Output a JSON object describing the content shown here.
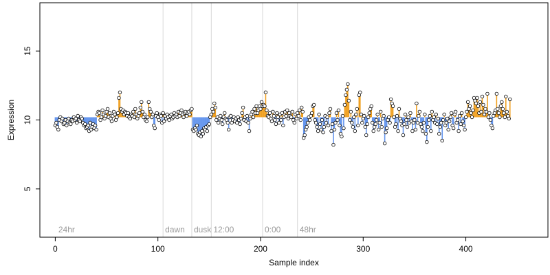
{
  "chart_data": {
    "type": "scatter",
    "xlabel": "Sample index",
    "ylabel": "Expression",
    "xlim": [
      -15,
      480
    ],
    "ylim": [
      1.5,
      18.5
    ],
    "x_ticks": [
      0,
      100,
      200,
      300,
      400
    ],
    "y_ticks": [
      5,
      10,
      15
    ],
    "grid": false,
    "baseline": 10.2,
    "colors": {
      "above_baseline": "#f0a020",
      "below_baseline": "#6495ed",
      "segment_line": "#d8d8d8",
      "point_stroke": "#000000",
      "point_fill": "#ffffff",
      "axis": "#000000",
      "segment_label": "#9a9a9a"
    },
    "segments": [
      {
        "label": "24hr",
        "x": 1
      },
      {
        "label": "dawn",
        "x": 105
      },
      {
        "label": "dusk",
        "x": 133
      },
      {
        "label": "12:00",
        "x": 152
      },
      {
        "label": "0:00",
        "x": 202
      },
      {
        "label": "48hr",
        "x": 236
      }
    ],
    "values": [
      9.6,
      9.8,
      9.5,
      9.3,
      10.0,
      10.2,
      9.9,
      10.1,
      9.7,
      9.8,
      10.0,
      9.6,
      9.9,
      10.1,
      9.8,
      9.7,
      10.0,
      9.9,
      10.2,
      10.0,
      10.1,
      9.8,
      10.3,
      10.0,
      9.9,
      10.2,
      10.1,
      9.8,
      9.6,
      9.7,
      9.4,
      9.5,
      9.6,
      9.2,
      9.8,
      9.3,
      9.5,
      9.7,
      9.4,
      9.6,
      9.3,
      10.4,
      10.6,
      10.5,
      10.0,
      10.2,
      10.7,
      10.4,
      10.1,
      10.3,
      10.6,
      10.8,
      10.2,
      10.5,
      10.1,
      9.9,
      10.3,
      10.6,
      10.4,
      10.0,
      10.2,
      10.5,
      11.6,
      12.0,
      10.8,
      10.6,
      10.7,
      10.4,
      10.6,
      10.5,
      10.3,
      10.5,
      10.2,
      10.1,
      10.4,
      10.3,
      10.6,
      10.2,
      10.8,
      10.4,
      10.1,
      10.3,
      10.5,
      10.9,
      11.3,
      10.6,
      10.2,
      10.4,
      10.0,
      9.9,
      10.2,
      11.3,
      10.8,
      10.6,
      10.2,
      10.4,
      9.6,
      9.4,
      10.3,
      10.5,
      10.2,
      10.0,
      10.4,
      10.3,
      9.8,
      10.5,
      9.9,
      10.3,
      10.1,
      10.4,
      10.2,
      10.0,
      10.3,
      10.4,
      10.1,
      10.2,
      10.5,
      10.3,
      10.4,
      10.2,
      10.6,
      10.3,
      10.5,
      10.7,
      10.4,
      10.2,
      10.5,
      10.6,
      10.3,
      10.5,
      10.6,
      10.4,
      10.7,
      10.8,
      9.3,
      9.2,
      9.4,
      9.3,
      9.6,
      9.0,
      8.9,
      9.1,
      8.8,
      9.2,
      9.0,
      9.4,
      9.3,
      9.5,
      9.2,
      9.6,
      9.7,
      10.2,
      10.4,
      10.8,
      10.6,
      11.2,
      10.9,
      10.0,
      10.2,
      9.8,
      10.1,
      10.3,
      10.0,
      9.7,
      10.2,
      10.5,
      10.1,
      10.0,
      9.8,
      9.3,
      10.2,
      10.3,
      9.8,
      10.0,
      10.2,
      9.9,
      10.1,
      9.8,
      10.2,
      10.0,
      9.7,
      10.1,
      10.5,
      10.9,
      10.0,
      10.2,
      9.9,
      10.3,
      9.8,
      9.2,
      10.1,
      10.4,
      10.6,
      10.2,
      10.8,
      10.5,
      11.0,
      10.5,
      10.7,
      11.0,
      10.8,
      11.3,
      11.0,
      11.1,
      11.0,
      12.0,
      10.7,
      10.3,
      10.2,
      10.5,
      10.1,
      9.9,
      10.6,
      10.3,
      10.0,
      9.7,
      10.5,
      10.2,
      9.8,
      10.4,
      10.0,
      10.5,
      9.6,
      10.2,
      10.6,
      10.3,
      10.7,
      10.1,
      10.5,
      10.3,
      10.2,
      10.6,
      10.0,
      9.8,
      10.4,
      10.1,
      10.5,
      10.3,
      10.7,
      10.0,
      10.9,
      10.6,
      8.7,
      8.9,
      9.3,
      9.5,
      9.8,
      10.2,
      10.0,
      10.3,
      10.5,
      11.0,
      11.1,
      10.0,
      9.8,
      9.5,
      9.2,
      10.4,
      9.7,
      9.3,
      10.0,
      9.1,
      9.5,
      10.3,
      9.8,
      10.2,
      9.6,
      10.5,
      10.8,
      9.2,
      9.7,
      8.2,
      9.3,
      9.8,
      10.5,
      10.0,
      10.7,
      9.6,
      9.0,
      8.8,
      10.3,
      9.4,
      11.1,
      11.8,
      12.2,
      12.6,
      11.4,
      10.0,
      10.6,
      9.8,
      9.5,
      10.2,
      9.2,
      10.4,
      10.8,
      9.6,
      11.8,
      12.0,
      10.4,
      9.8,
      10.1,
      10.3,
      9.5,
      8.9,
      9.7,
      10.2,
      10.5,
      10.8,
      11.0,
      9.8,
      9.2,
      9.5,
      9.7,
      10.0,
      10.4,
      9.3,
      9.8,
      10.6,
      9.5,
      10.1,
      10.3,
      8.3,
      9.1,
      9.4,
      10.0,
      10.2,
      9.8,
      11.5,
      11.2,
      11.0,
      10.2,
      9.5,
      9.7,
      10.3,
      9.2,
      10.8,
      10.1,
      9.9,
      9.6,
      8.9,
      9.7,
      10.4,
      10.0,
      9.5,
      10.2,
      9.8,
      10.5,
      9.9,
      9.2,
      9.8,
      10.0,
      9.3,
      11.2,
      9.8,
      10.3,
      10.6,
      9.7,
      9.5,
      9.2,
      9.8,
      10.4,
      9.0,
      8.4,
      9.5,
      10.0,
      10.3,
      9.2,
      10.6,
      10.0,
      10.2,
      9.8,
      10.4,
      9.7,
      10.1,
      9.0,
      9.5,
      9.8,
      8.5,
      10.0,
      10.4,
      9.6,
      9.8,
      10.1,
      9.3,
      9.9,
      10.2,
      10.5,
      9.6,
      9.4,
      10.4,
      10.6,
      9.8,
      10.0,
      9.2,
      10.3,
      9.7,
      10.5,
      9.9,
      9.6,
      9.3,
      10.2,
      10.6,
      11.3,
      10.8,
      11.0,
      10.5,
      10.2,
      10.7,
      11.6,
      11.4,
      11.2,
      11.6,
      11.0,
      10.5,
      11.3,
      10.6,
      11.7,
      11.1,
      10.4,
      10.8,
      10.6,
      11.9,
      10.2,
      10.5,
      10.0,
      9.6,
      9.4,
      10.3,
      10.5,
      10.7,
      11.9,
      10.8,
      10.5,
      10.2,
      11.0,
      11.3,
      10.8,
      10.5,
      10.2,
      11.7,
      10.6,
      10.3,
      10.1,
      11.5
    ]
  }
}
